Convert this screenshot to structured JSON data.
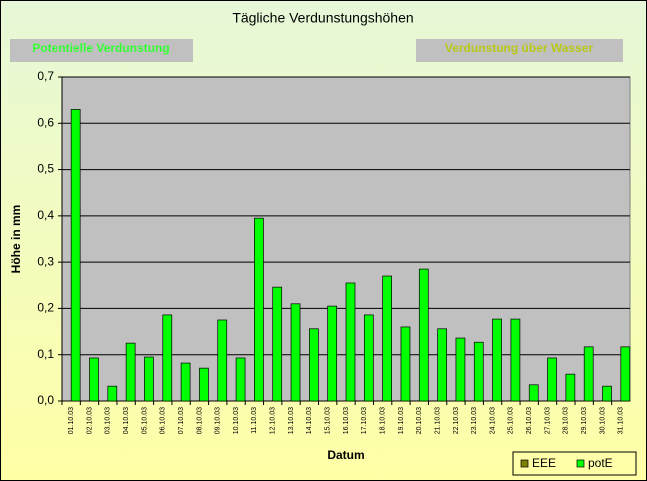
{
  "chart_data": {
    "type": "bar",
    "title": "Tägliche Verdunstungshöhen",
    "buttons": [
      "Potentielle Verdunstung",
      "Verdunstung über Wasser"
    ],
    "ylabel": "Höhe in mm",
    "xlabel": "Datum",
    "categories": [
      "01.10.03",
      "02.10.03",
      "03.10.03",
      "04.10.03",
      "05.10.03",
      "06.10.03",
      "07.10.03",
      "08.10.03",
      "09.10.03",
      "10.10.03",
      "11.10.03",
      "12.10.03",
      "13.10.03",
      "14.10.03",
      "15.10.03",
      "16.10.03",
      "17.10.03",
      "18.10.03",
      "19.10.03",
      "20.10.03",
      "21.10.03",
      "22.10.03",
      "23.10.03",
      "24.10.03",
      "25.10.03",
      "26.10.03",
      "27.10.03",
      "28.10.03",
      "29.10.03",
      "30.10.03",
      "31.10.03"
    ],
    "series": [
      {
        "name": "EEE",
        "color": "#808000",
        "values": [
          null,
          null,
          null,
          null,
          null,
          null,
          null,
          null,
          null,
          null,
          null,
          null,
          null,
          null,
          null,
          null,
          null,
          null,
          null,
          null,
          null,
          null,
          null,
          null,
          null,
          null,
          null,
          null,
          null,
          null,
          null
        ]
      },
      {
        "name": "potE",
        "color": "#00ff00",
        "values": [
          0.63,
          0.093,
          0.032,
          0.125,
          0.095,
          0.186,
          0.082,
          0.071,
          0.175,
          0.093,
          0.395,
          0.246,
          0.21,
          0.156,
          0.205,
          0.255,
          0.186,
          0.27,
          0.16,
          0.285,
          0.156,
          0.136,
          0.127,
          0.177,
          0.177,
          0.035,
          0.093,
          0.058,
          0.117,
          0.032,
          0.117
        ]
      }
    ],
    "ylim": [
      0,
      0.7
    ],
    "yticks": [
      {
        "value": 0,
        "label": "0,0"
      },
      {
        "value": 0.1,
        "label": "0,1"
      },
      {
        "value": 0.2,
        "label": "0,2"
      },
      {
        "value": 0.3,
        "label": "0,3"
      },
      {
        "value": 0.4,
        "label": "0,4"
      },
      {
        "value": 0.5,
        "label": "0,5"
      },
      {
        "value": 0.6,
        "label": "0,6"
      },
      {
        "value": 0.7,
        "label": "0,7"
      }
    ],
    "grid": true
  }
}
